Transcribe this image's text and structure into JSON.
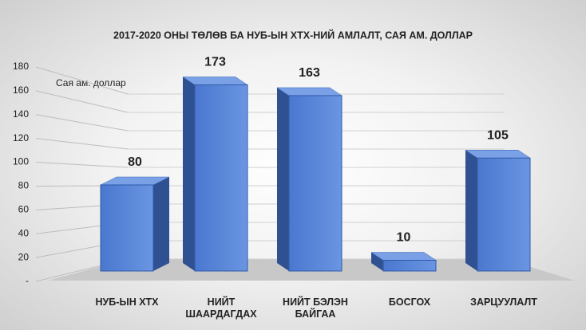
{
  "chart_data": {
    "type": "bar",
    "title": "2017-2020 ОНЫ ТӨЛӨВ БА НУБ-ЫН ХТХ-НИЙ АМЛАЛТ, САЯ АМ. ДОЛЛАР",
    "y_axis_label": "Сая ам. доллар",
    "categories": [
      "НУБ-ЫН ХТХ",
      "НИЙТ ШААРДАГДАХ",
      "НИЙТ БЭЛЭН БАЙГАА",
      "БОСГОХ",
      "ЗАРЦУУЛАЛТ"
    ],
    "values": [
      80,
      173,
      163,
      10,
      105
    ],
    "color": "#4f7fd6",
    "ylim": [
      0,
      180
    ],
    "yticks": [
      {
        "value": 0,
        "label": "-"
      },
      20,
      40,
      60,
      80,
      100,
      120,
      140,
      160,
      180
    ],
    "grid": true
  }
}
